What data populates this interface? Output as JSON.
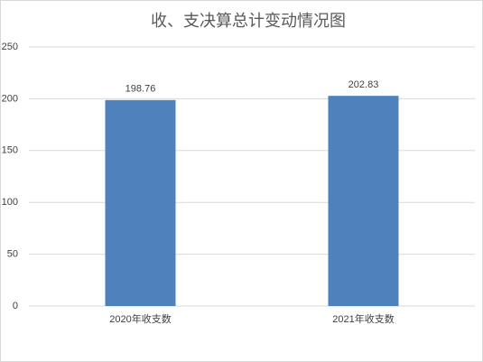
{
  "chart_data": {
    "type": "bar",
    "title": "收、支决算总计变动情况图",
    "categories": [
      "2020年收支数",
      "2021年收支数"
    ],
    "values": [
      198.76,
      202.83
    ],
    "color": "#4f81bd",
    "ylim": [
      0,
      250
    ],
    "yticks": [
      0,
      50,
      100,
      150,
      200,
      250
    ],
    "grid": true
  }
}
